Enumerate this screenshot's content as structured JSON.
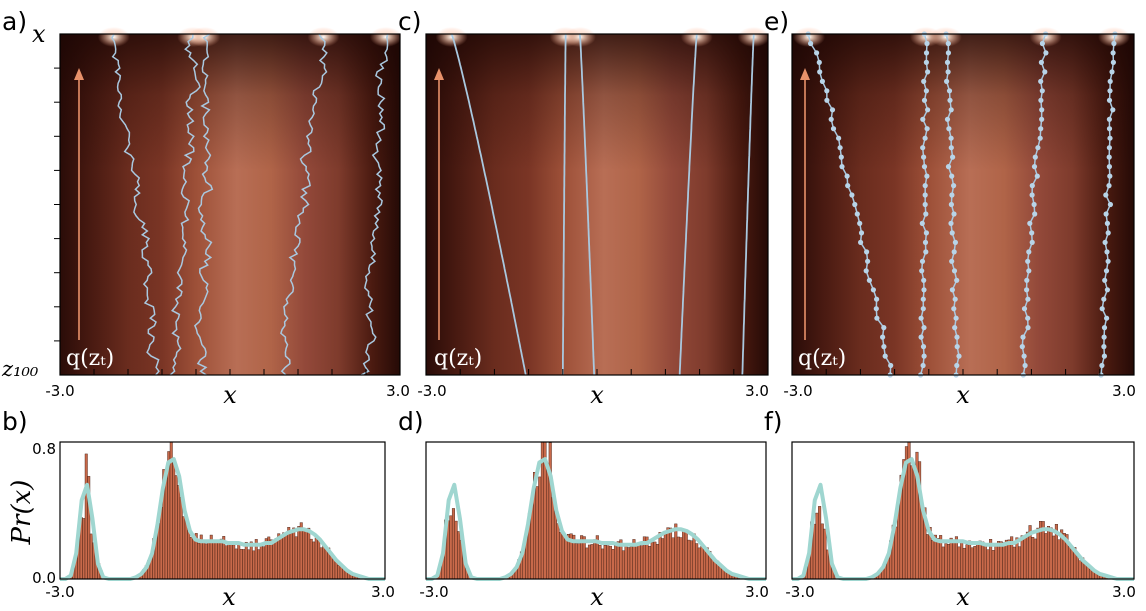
{
  "panels": [
    {
      "label": "a)",
      "type": "trajectory-heatmap",
      "y_axis_top_label": "x",
      "y_axis_bottom_label": "z₁₀₀",
      "xlabel": "x",
      "xlim": [
        -3.0,
        3.0
      ],
      "x_tick_labels": [
        "-3.0",
        "3.0"
      ],
      "annotation": "q(zₜ)",
      "arrow_color": "#e8916a",
      "style": "noisy",
      "trajectory_color": "#a9c8df",
      "trajectories": [
        {
          "x_top": -2.05,
          "x_bottom": -1.25
        },
        {
          "x_top": -0.65,
          "x_bottom": -1.0
        },
        {
          "x_top": -0.45,
          "x_bottom": -0.45
        },
        {
          "x_top": 1.65,
          "x_bottom": 0.95
        },
        {
          "x_top": 2.75,
          "x_bottom": 2.45
        }
      ]
    },
    {
      "label": "c)",
      "type": "trajectory-heatmap",
      "xlabel": "x",
      "xlim": [
        -3.0,
        3.0
      ],
      "x_tick_labels": [
        "-3.0",
        "3.0"
      ],
      "annotation": "q(zₜ)",
      "arrow_color": "#e8916a",
      "style": "smooth",
      "trajectory_color": "#a9c8df",
      "trajectories": [
        {
          "x_top": -2.55,
          "x_bottom": -1.25
        },
        {
          "x_top": -0.55,
          "x_bottom": -0.6
        },
        {
          "x_top": -0.3,
          "x_bottom": -0.05
        },
        {
          "x_top": 1.75,
          "x_bottom": 1.45
        },
        {
          "x_top": 2.75,
          "x_bottom": 2.55
        }
      ]
    },
    {
      "label": "e)",
      "type": "trajectory-heatmap",
      "xlabel": "x",
      "xlim": [
        -3.0,
        3.0
      ],
      "x_tick_labels": [
        "-3.0",
        "3.0"
      ],
      "annotation": "q(zₜ)",
      "arrow_color": "#e8916a",
      "style": "dotted",
      "trajectory_color": "#a9c8df",
      "trajectories": [
        {
          "x_top": -2.7,
          "x_bottom": -1.25
        },
        {
          "x_top": -0.65,
          "x_bottom": -0.7
        },
        {
          "x_top": -0.3,
          "x_bottom": -0.1
        },
        {
          "x_top": 1.45,
          "x_bottom": 1.05
        },
        {
          "x_top": 2.65,
          "x_bottom": 2.45
        }
      ]
    }
  ],
  "histograms": [
    {
      "label": "b)",
      "ylabel": "Pr(x)",
      "y_tick_labels": [
        "0.8",
        "0.0"
      ],
      "ylim": [
        0,
        0.8
      ],
      "xlabel": "x",
      "xlim": [
        -3.0,
        3.0
      ],
      "x_tick_labels": [
        "-3.0",
        "3.0"
      ],
      "first_peak_height": 0.78
    },
    {
      "label": "d)",
      "xlabel": "x",
      "xlim": [
        -3.0,
        3.0
      ],
      "x_tick_labels": [
        "-3.0",
        "3.0"
      ],
      "first_peak_height": 0.44
    },
    {
      "label": "f)",
      "xlabel": "x",
      "xlim": [
        -3.0,
        3.0
      ],
      "x_tick_labels": [
        "-3.0",
        "3.0"
      ],
      "first_peak_height": 0.37
    }
  ],
  "chart_data": {
    "type": "bar",
    "xlim": [
      -3.0,
      3.0
    ],
    "ylim": [
      0,
      0.8
    ],
    "bar_color": "#c8694a",
    "curve_color": "#9fd6d0",
    "density_curve": {
      "x": [
        -3.0,
        -2.9,
        -2.8,
        -2.7,
        -2.6,
        -2.5,
        -2.4,
        -2.3,
        -2.2,
        -2.1,
        -2.0,
        -1.9,
        -1.8,
        -1.7,
        -1.6,
        -1.5,
        -1.4,
        -1.3,
        -1.2,
        -1.1,
        -1.0,
        -0.9,
        -0.8,
        -0.7,
        -0.6,
        -0.5,
        -0.4,
        -0.3,
        -0.2,
        -0.1,
        0.0,
        0.1,
        0.2,
        0.3,
        0.4,
        0.5,
        0.6,
        0.7,
        0.8,
        0.9,
        1.0,
        1.1,
        1.2,
        1.3,
        1.4,
        1.5,
        1.6,
        1.7,
        1.8,
        1.9,
        2.0,
        2.1,
        2.2,
        2.3,
        2.4,
        2.5,
        2.6,
        2.7,
        2.8,
        2.9,
        3.0
      ],
      "y": [
        0.0,
        0.0,
        0.02,
        0.15,
        0.46,
        0.55,
        0.35,
        0.09,
        0.01,
        0.0,
        0.0,
        0.0,
        0.0,
        0.0,
        0.01,
        0.03,
        0.07,
        0.15,
        0.32,
        0.53,
        0.68,
        0.7,
        0.6,
        0.4,
        0.28,
        0.23,
        0.22,
        0.22,
        0.22,
        0.22,
        0.22,
        0.21,
        0.21,
        0.21,
        0.2,
        0.2,
        0.2,
        0.2,
        0.21,
        0.21,
        0.23,
        0.25,
        0.27,
        0.28,
        0.29,
        0.29,
        0.28,
        0.26,
        0.23,
        0.19,
        0.15,
        0.11,
        0.08,
        0.05,
        0.03,
        0.02,
        0.01,
        0.0,
        0.0,
        0.0,
        0.0
      ]
    }
  }
}
